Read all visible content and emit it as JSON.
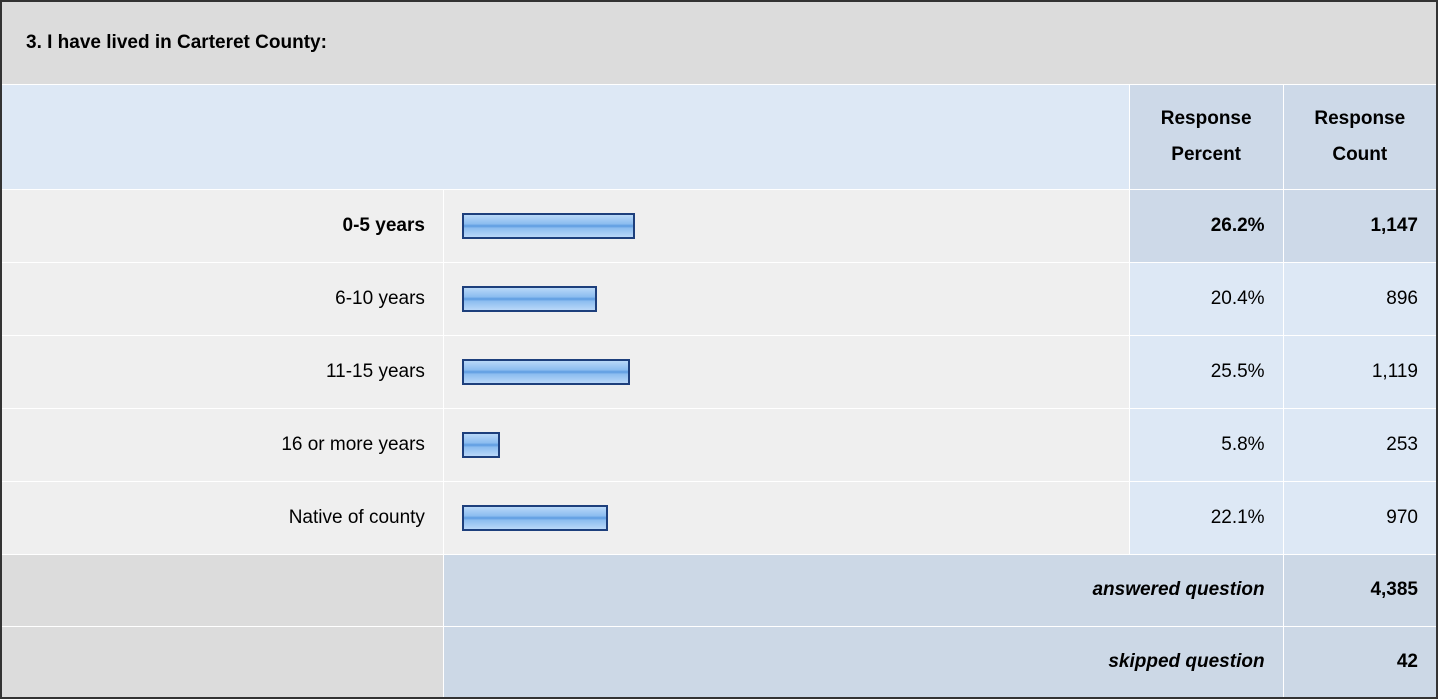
{
  "title": "3. I have lived in Carteret County:",
  "header": {
    "percent": "Response Percent",
    "count": "Response Count"
  },
  "rows": [
    {
      "label": "0-5 years",
      "percent": {
        "value": 26.2,
        "label": "26.2%"
      },
      "count": "1,147"
    },
    {
      "label": "6-10 years",
      "percent": {
        "value": 20.4,
        "label": "20.4%"
      },
      "count": "896"
    },
    {
      "label": "11-15 years",
      "percent": {
        "value": 25.5,
        "label": "25.5%"
      },
      "count": "1,119"
    },
    {
      "label": "16 or more years",
      "percent": {
        "value": 5.8,
        "label": "5.8%"
      },
      "count": "253"
    },
    {
      "label": "Native of county",
      "percent": {
        "value": 22.1,
        "label": "22.1%"
      },
      "count": "970"
    }
  ],
  "footer": {
    "answered_label": "answered question",
    "answered": "4,385",
    "skipped_label": "skipped question",
    "skipped": "42"
  }
}
